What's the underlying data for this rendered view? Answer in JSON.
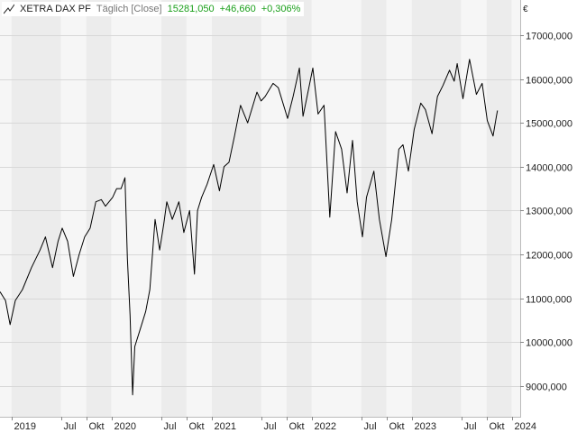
{
  "header": {
    "instrument": "XETRA DAX PF",
    "interval": "Täglich [Close]",
    "last_value": "15281,050",
    "change_abs": "+46,660",
    "change_pct": "+0,306%"
  },
  "currency_symbol": "€",
  "colors": {
    "line": "#000000",
    "positive": "#1a9f1a",
    "band_dark": "#ececec",
    "band_light": "#f6f6f6",
    "grid": "#d8d8d8"
  },
  "chart_data": {
    "type": "line",
    "title": "XETRA DAX PF",
    "xlabel": "",
    "ylabel": "",
    "y_unit": "€",
    "grid": true,
    "axis_position": "right",
    "xlim": [
      "2018-11-20",
      "2024-02-01"
    ],
    "ylim": [
      8300,
      17800
    ],
    "y_ticks": [
      9000,
      10000,
      11000,
      12000,
      13000,
      14000,
      15000,
      16000,
      17000
    ],
    "y_tick_labels": [
      "9000,000",
      "10000,000",
      "11000,000",
      "12000,000",
      "13000,000",
      "14000,000",
      "15000,000",
      "16000,000",
      "17000,000"
    ],
    "x_ticks": [
      {
        "date": "2019-01-01",
        "label": "2019"
      },
      {
        "date": "2019-07-01",
        "label": "Jul"
      },
      {
        "date": "2019-10-01",
        "label": "Okt"
      },
      {
        "date": "2020-01-01",
        "label": "2020"
      },
      {
        "date": "2020-07-01",
        "label": "Jul"
      },
      {
        "date": "2020-10-01",
        "label": "Okt"
      },
      {
        "date": "2021-01-01",
        "label": "2021"
      },
      {
        "date": "2021-07-01",
        "label": "Jul"
      },
      {
        "date": "2021-10-01",
        "label": "Okt"
      },
      {
        "date": "2022-01-01",
        "label": "2022"
      },
      {
        "date": "2022-07-01",
        "label": "Jul"
      },
      {
        "date": "2022-10-01",
        "label": "Okt"
      },
      {
        "date": "2023-01-01",
        "label": "2023"
      },
      {
        "date": "2023-07-01",
        "label": "Jul"
      },
      {
        "date": "2023-10-01",
        "label": "Okt"
      },
      {
        "date": "2024-01-01",
        "label": "2024"
      }
    ],
    "series": [
      {
        "name": "XETRA DAX PF",
        "points": [
          [
            "2018-11-20",
            11150
          ],
          [
            "2018-12-10",
            10950
          ],
          [
            "2018-12-27",
            10400
          ],
          [
            "2019-01-15",
            10950
          ],
          [
            "2019-02-10",
            11200
          ],
          [
            "2019-03-15",
            11700
          ],
          [
            "2019-04-15",
            12100
          ],
          [
            "2019-05-05",
            12400
          ],
          [
            "2019-05-31",
            11700
          ],
          [
            "2019-06-20",
            12300
          ],
          [
            "2019-07-05",
            12600
          ],
          [
            "2019-07-25",
            12300
          ],
          [
            "2019-08-15",
            11500
          ],
          [
            "2019-09-05",
            12000
          ],
          [
            "2019-09-25",
            12400
          ],
          [
            "2019-10-15",
            12600
          ],
          [
            "2019-11-05",
            13200
          ],
          [
            "2019-11-25",
            13250
          ],
          [
            "2019-12-10",
            13100
          ],
          [
            "2020-01-05",
            13300
          ],
          [
            "2020-01-20",
            13500
          ],
          [
            "2020-02-05",
            13500
          ],
          [
            "2020-02-19",
            13750
          ],
          [
            "2020-02-28",
            11900
          ],
          [
            "2020-03-09",
            10600
          ],
          [
            "2020-03-18",
            8800
          ],
          [
            "2020-03-26",
            9900
          ],
          [
            "2020-04-15",
            10300
          ],
          [
            "2020-05-05",
            10700
          ],
          [
            "2020-05-20",
            11200
          ],
          [
            "2020-06-08",
            12800
          ],
          [
            "2020-06-25",
            12100
          ],
          [
            "2020-07-10",
            12700
          ],
          [
            "2020-07-21",
            13200
          ],
          [
            "2020-08-10",
            12800
          ],
          [
            "2020-09-03",
            13200
          ],
          [
            "2020-09-21",
            12500
          ],
          [
            "2020-10-12",
            13000
          ],
          [
            "2020-10-30",
            11550
          ],
          [
            "2020-11-10",
            13000
          ],
          [
            "2020-11-25",
            13300
          ],
          [
            "2020-12-15",
            13600
          ],
          [
            "2021-01-08",
            14050
          ],
          [
            "2021-01-29",
            13450
          ],
          [
            "2021-02-15",
            14000
          ],
          [
            "2021-03-05",
            14100
          ],
          [
            "2021-03-25",
            14700
          ],
          [
            "2021-04-16",
            15400
          ],
          [
            "2021-05-12",
            15000
          ],
          [
            "2021-06-15",
            15700
          ],
          [
            "2021-06-30",
            15500
          ],
          [
            "2021-07-15",
            15600
          ],
          [
            "2021-08-13",
            15900
          ],
          [
            "2021-09-01",
            15800
          ],
          [
            "2021-10-05",
            15100
          ],
          [
            "2021-10-25",
            15600
          ],
          [
            "2021-11-17",
            16250
          ],
          [
            "2021-11-30",
            15150
          ],
          [
            "2021-12-15",
            15600
          ],
          [
            "2022-01-05",
            16250
          ],
          [
            "2022-01-24",
            15200
          ],
          [
            "2022-02-15",
            15400
          ],
          [
            "2022-03-08",
            12850
          ],
          [
            "2022-03-29",
            14800
          ],
          [
            "2022-04-20",
            14400
          ],
          [
            "2022-05-10",
            13400
          ],
          [
            "2022-05-30",
            14600
          ],
          [
            "2022-06-16",
            13200
          ],
          [
            "2022-07-05",
            12400
          ],
          [
            "2022-07-20",
            13300
          ],
          [
            "2022-08-16",
            13900
          ],
          [
            "2022-09-05",
            12800
          ],
          [
            "2022-09-29",
            11950
          ],
          [
            "2022-10-20",
            12800
          ],
          [
            "2022-11-15",
            14400
          ],
          [
            "2022-11-30",
            14500
          ],
          [
            "2022-12-20",
            13900
          ],
          [
            "2023-01-10",
            14850
          ],
          [
            "2023-02-03",
            15450
          ],
          [
            "2023-02-20",
            15300
          ],
          [
            "2023-03-16",
            14750
          ],
          [
            "2023-04-05",
            15600
          ],
          [
            "2023-04-25",
            15850
          ],
          [
            "2023-05-19",
            16200
          ],
          [
            "2023-06-05",
            15950
          ],
          [
            "2023-06-16",
            16350
          ],
          [
            "2023-07-07",
            15550
          ],
          [
            "2023-07-31",
            16450
          ],
          [
            "2023-08-25",
            15650
          ],
          [
            "2023-09-15",
            15900
          ],
          [
            "2023-10-04",
            15050
          ],
          [
            "2023-10-25",
            14700
          ],
          [
            "2023-11-06",
            15150
          ],
          [
            "2023-11-10",
            15281
          ]
        ]
      }
    ]
  }
}
